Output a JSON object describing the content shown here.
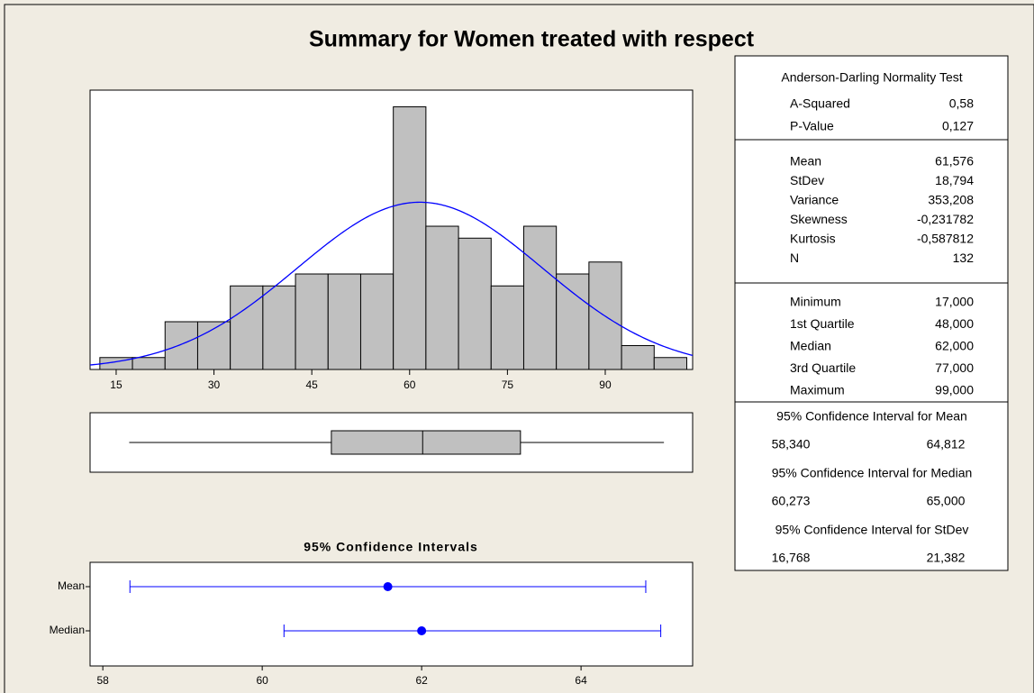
{
  "chart_data": [
    {
      "type": "histogram",
      "title": "Summary for Women treated with respect",
      "bins": [
        12.5,
        17.5,
        22.5,
        27.5,
        32.5,
        37.5,
        42.5,
        47.5,
        52.5,
        57.5,
        62.5,
        67.5,
        72.5,
        77.5,
        82.5,
        87.5,
        92.5,
        97.5,
        102.5
      ],
      "counts": [
        1,
        1,
        4,
        4,
        7,
        7,
        8,
        8,
        8,
        22,
        12,
        11,
        7,
        12,
        8,
        9,
        2,
        1
      ],
      "xlim": [
        11,
        103.4
      ],
      "ylim": [
        0,
        23.4
      ],
      "xticks": [
        15,
        30,
        45,
        60,
        75,
        90
      ],
      "color": "#c0c0c0",
      "fit_color": "#0000ff"
    },
    {
      "type": "boxplot",
      "min": 17,
      "q1": 48,
      "median": 62,
      "q3": 77,
      "max": 99,
      "xlim": [
        11,
        103.4
      ],
      "color": "#c0c0c0"
    },
    {
      "type": "interval",
      "title": "95% Confidence Intervals",
      "categories": [
        "Mean",
        "Median"
      ],
      "values": [
        61.576,
        62
      ],
      "lower": [
        58.34,
        60.273
      ],
      "upper": [
        64.812,
        65
      ],
      "xlim": [
        57.84,
        65.4
      ],
      "xticks": [
        58,
        60,
        62,
        64
      ],
      "color": "#0000ff"
    }
  ],
  "summary_table": {
    "sections": [
      {
        "title": "Anderson-Darling Normality Test",
        "rows": [
          {
            "name": "A-Squared",
            "value": {
              "value": 0.58,
              "label": "0,58"
            }
          },
          {
            "name": "P-Value",
            "value": {
              "value": 0.127,
              "label": "0,127"
            }
          }
        ]
      },
      {
        "rows": [
          {
            "name": "Mean",
            "value": {
              "value": 61.576,
              "label": "61,576"
            }
          },
          {
            "name": "StDev",
            "value": {
              "value": 18.794,
              "label": "18,794"
            }
          },
          {
            "name": "Variance",
            "value": {
              "value": 353.208,
              "label": "353,208"
            }
          },
          {
            "name": "Skewness",
            "value": {
              "value": -0.231782,
              "label": "-0,231782"
            }
          },
          {
            "name": "Kurtosis",
            "value": {
              "value": -0.587812,
              "label": "-0,587812"
            }
          },
          {
            "name": "N",
            "value": {
              "value": 132,
              "label": "132"
            }
          }
        ]
      },
      {
        "rows": [
          {
            "name": "Minimum",
            "value": {
              "value": 17,
              "label": "17,000"
            }
          },
          {
            "name": "1st Quartile",
            "value": {
              "value": 48,
              "label": "48,000"
            }
          },
          {
            "name": "Median",
            "value": {
              "value": 62,
              "label": "62,000"
            }
          },
          {
            "name": "3rd Quartile",
            "value": {
              "value": 77,
              "label": "77,000"
            }
          },
          {
            "name": "Maximum",
            "value": {
              "value": 99,
              "label": "99,000"
            }
          }
        ]
      },
      {
        "title": "95% Confidence Interval for Mean",
        "interval": [
          {
            "value": 58.34,
            "label": "58,340"
          },
          {
            "value": 64.812,
            "label": "64,812"
          }
        ]
      },
      {
        "title": "95% Confidence Interval for Median",
        "interval": [
          {
            "value": 60.273,
            "label": "60,273"
          },
          {
            "value": 65,
            "label": "65,000"
          }
        ]
      },
      {
        "title": "95% Confidence Interval for StDev",
        "interval": [
          {
            "value": 16.768,
            "label": "16,768"
          },
          {
            "value": 21.382,
            "label": "21,382"
          }
        ]
      }
    ]
  }
}
